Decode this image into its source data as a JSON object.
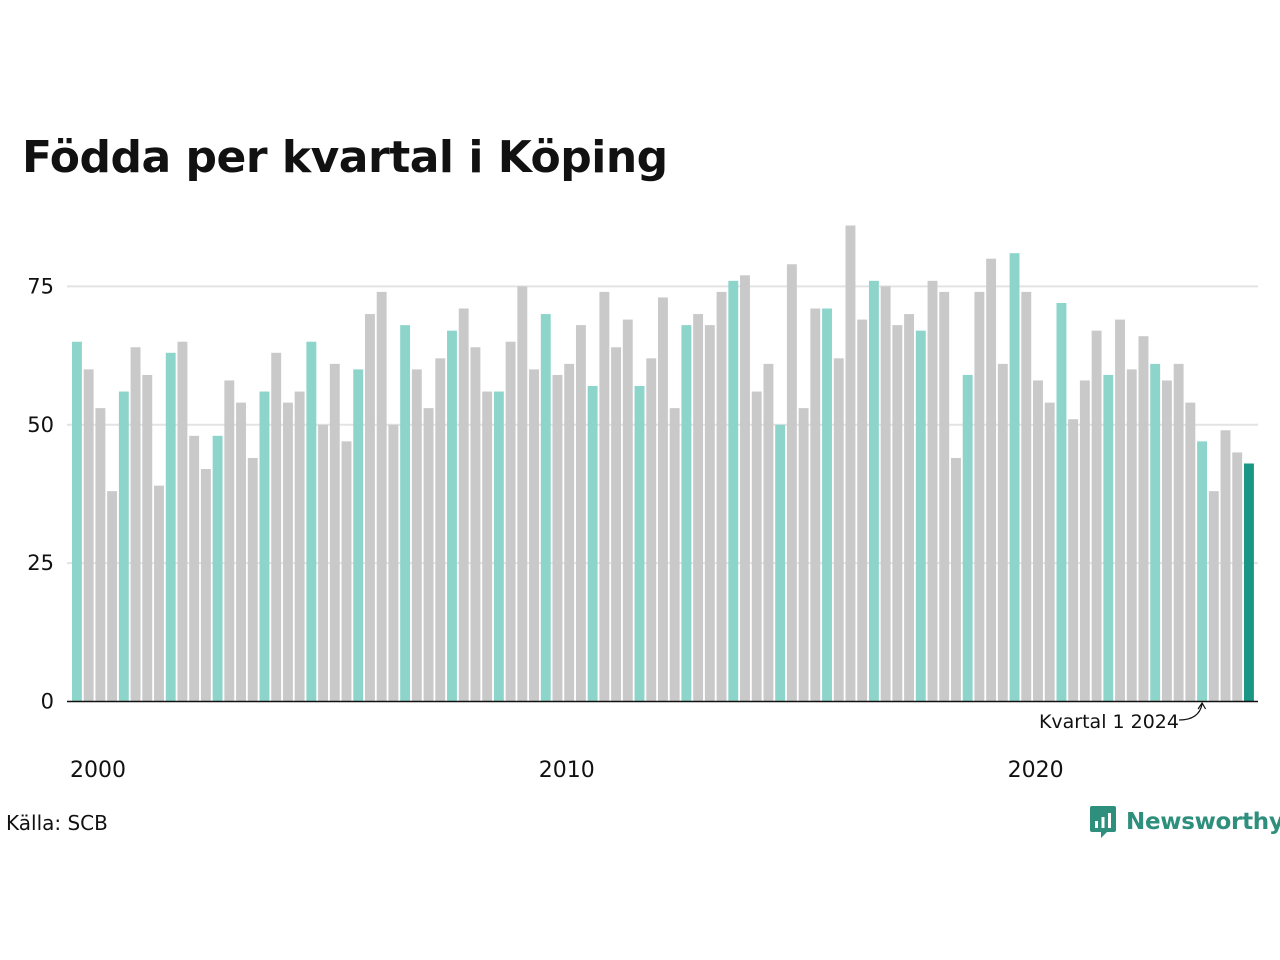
{
  "title": "Födda per kvartal i Köping",
  "source": "Källa: SCB",
  "brand": {
    "name": "Newsworthy",
    "icon": "newsworthy-logo-icon"
  },
  "colors": {
    "q1": "#8dd5cb",
    "other": "#c9c9c9",
    "highlight": "#1a9684",
    "grid": "#e3e3e3",
    "axis": "#111111",
    "brand": "#2e8f7c"
  },
  "chart_data": {
    "type": "bar",
    "title": "Födda per kvartal i Köping",
    "xlabel": "",
    "ylabel": "",
    "ylim": [
      0,
      87
    ],
    "yticks": [
      0,
      25,
      50,
      75
    ],
    "xtick_labels": [
      {
        "label": "2000",
        "index": 0
      },
      {
        "label": "2010",
        "index": 40
      },
      {
        "label": "2020",
        "index": 80
      }
    ],
    "grid": true,
    "start_year": 2000,
    "start_quarter": 1,
    "values": [
      65,
      60,
      53,
      38,
      56,
      64,
      59,
      39,
      63,
      65,
      48,
      42,
      48,
      58,
      54,
      44,
      56,
      63,
      54,
      56,
      65,
      50,
      61,
      47,
      60,
      70,
      74,
      50,
      68,
      60,
      53,
      62,
      67,
      71,
      64,
      56,
      56,
      65,
      75,
      60,
      70,
      59,
      61,
      68,
      57,
      74,
      64,
      69,
      57,
      62,
      73,
      53,
      68,
      70,
      68,
      74,
      76,
      77,
      56,
      61,
      50,
      79,
      53,
      71,
      71,
      62,
      86,
      69,
      76,
      75,
      68,
      70,
      67,
      76,
      74,
      44,
      59,
      74,
      80,
      61,
      81,
      74,
      58,
      54,
      72,
      51,
      58,
      67,
      59,
      69,
      60,
      66,
      61,
      58,
      61,
      54,
      47,
      38,
      49,
      45,
      43
    ],
    "highlight_index": 100,
    "annotation": {
      "text": "Kvartal 1 2024",
      "index": 96
    }
  }
}
